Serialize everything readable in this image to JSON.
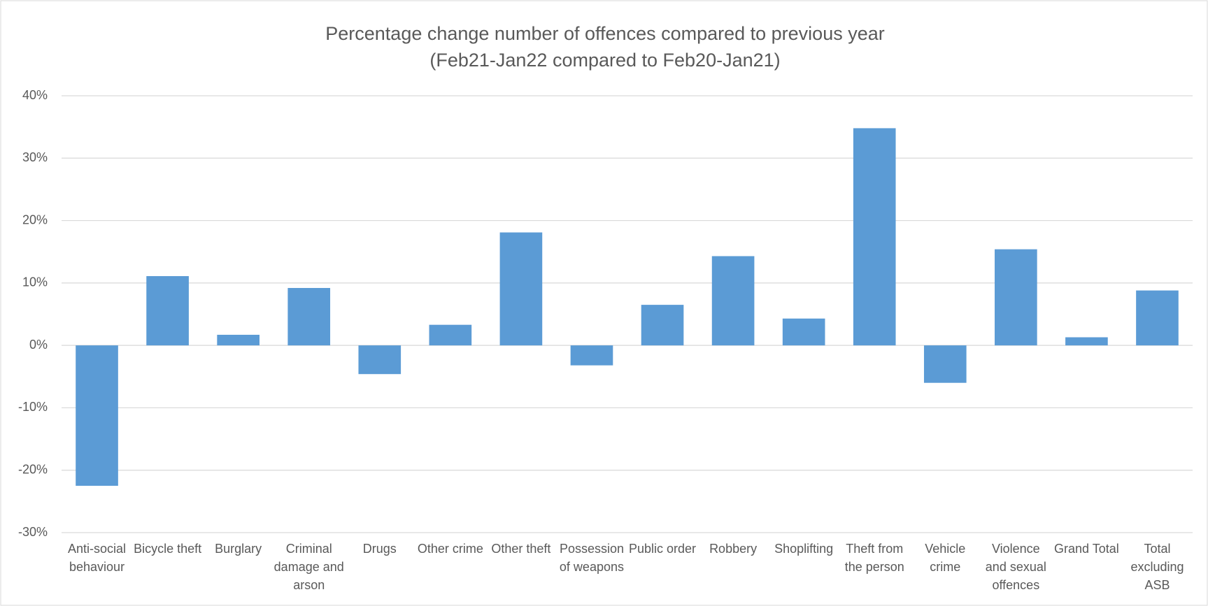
{
  "chart_data": {
    "type": "bar",
    "title": "Percentage change number of offences compared to previous year",
    "subtitle": "(Feb21-Jan22 compared to Feb20-Jan21)",
    "categories": [
      "Anti-social behaviour",
      "Bicycle theft",
      "Burglary",
      "Criminal damage and arson",
      "Drugs",
      "Other crime",
      "Other theft",
      "Possession of weapons",
      "Public order",
      "Robbery",
      "Shoplifting",
      "Theft from the person",
      "Vehicle crime",
      "Violence and sexual offences",
      "Grand Total",
      "Total excluding ASB"
    ],
    "values": [
      -22.5,
      11.1,
      1.7,
      9.2,
      -4.6,
      3.3,
      18.1,
      -3.2,
      6.5,
      14.3,
      4.3,
      34.8,
      -6.0,
      15.4,
      1.3,
      8.8
    ],
    "color": "#5b9bd5",
    "ylim": [
      -30,
      40
    ],
    "yticks": [
      {
        "value": -30,
        "label": "-30%"
      },
      {
        "value": -20,
        "label": "-20%"
      },
      {
        "value": -10,
        "label": "-10%"
      },
      {
        "value": 0,
        "label": "0%"
      },
      {
        "value": 10,
        "label": "10%"
      },
      {
        "value": 20,
        "label": "20%"
      },
      {
        "value": 30,
        "label": "30%"
      },
      {
        "value": 40,
        "label": "40%"
      }
    ],
    "grid": true
  }
}
